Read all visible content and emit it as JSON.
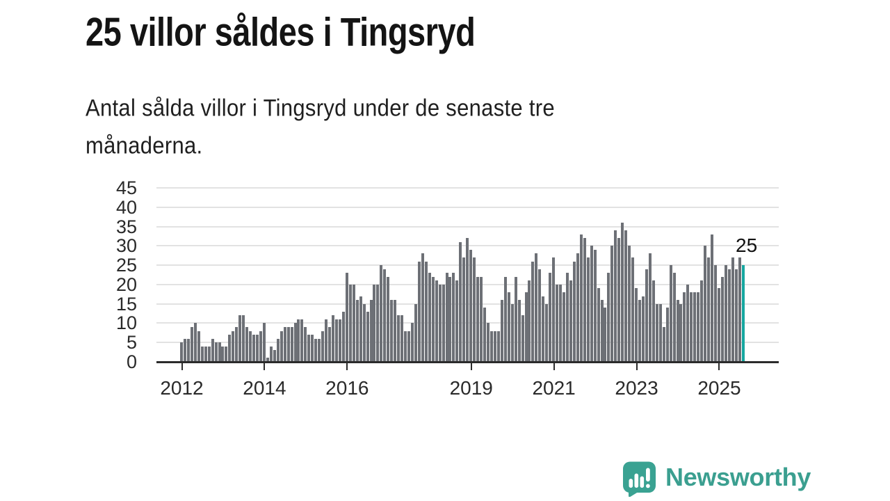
{
  "header": {
    "title": "25 villor såldes i Tingsryd",
    "subtitle_lines": [
      "Antal sålda villor i Tingsryd under de senaste tre",
      "månaderna."
    ]
  },
  "chart_data": {
    "type": "bar",
    "title": "25 villor såldes i Tingsryd",
    "subtitle": "Antal sålda villor i Tingsryd under de senaste tre månaderna.",
    "xlabel": "",
    "ylabel": "",
    "ylim": [
      0,
      45
    ],
    "yticks": [
      0,
      5,
      10,
      15,
      20,
      25,
      30,
      35,
      40,
      45
    ],
    "xtick_years": [
      2012,
      2014,
      2016,
      2019,
      2021,
      2023,
      2025
    ],
    "x_start": "2012-01",
    "frequency": "monthly",
    "grid": true,
    "values": [
      5,
      6,
      6,
      9,
      10,
      8,
      4,
      4,
      4,
      6,
      5,
      5,
      4,
      4,
      7,
      8,
      9,
      12,
      12,
      9,
      8,
      7,
      7,
      8,
      10,
      1,
      4,
      3,
      6,
      8,
      9,
      9,
      9,
      10,
      11,
      11,
      9,
      7,
      7,
      6,
      6,
      8,
      11,
      9,
      12,
      11,
      11,
      13,
      23,
      20,
      20,
      16,
      17,
      15,
      13,
      16,
      20,
      20,
      25,
      24,
      22,
      16,
      16,
      12,
      12,
      8,
      8,
      10,
      15,
      26,
      28,
      26,
      23,
      22,
      21,
      20,
      20,
      23,
      22,
      23,
      21,
      31,
      27,
      32,
      29,
      27,
      22,
      22,
      14,
      10,
      8,
      8,
      8,
      16,
      22,
      18,
      15,
      22,
      16,
      12,
      18,
      21,
      26,
      28,
      24,
      17,
      15,
      23,
      27,
      20,
      20,
      18,
      23,
      21,
      26,
      28,
      33,
      32,
      27,
      30,
      29,
      19,
      16,
      14,
      23,
      30,
      34,
      32,
      36,
      34,
      30,
      27,
      19,
      16,
      17,
      24,
      28,
      21,
      15,
      15,
      9,
      14,
      25,
      23,
      16,
      15,
      18,
      20,
      18,
      18,
      18,
      21,
      30,
      27,
      33,
      25,
      19,
      22,
      25,
      24,
      27,
      24,
      27,
      25
    ],
    "highlight_index": 163,
    "highlight_value": 25,
    "highlight_label": "25",
    "bar_color": "#6d7076",
    "highlight_color": "#16a7a0",
    "gridline_color": "#e2e2e2",
    "axis_color": "#2b2b2b",
    "legend": null
  },
  "footer": {
    "brand": "Newsworthy",
    "brand_color": "#3b9f90",
    "logo_icon": "speech-bubble-bar-chart"
  }
}
